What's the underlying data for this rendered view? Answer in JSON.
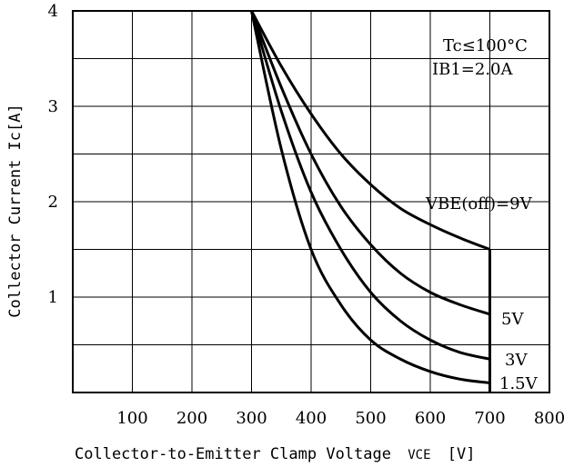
{
  "chart_data": {
    "type": "line",
    "xlabel": "Collector-to-Emitter Clamp Voltage",
    "xlabel_symbol": "VCE",
    "xlabel_unit": "[V]",
    "ylabel": "Collector Current Ic[A]",
    "xlim": [
      0,
      800
    ],
    "ylim": [
      0,
      4
    ],
    "x_ticks": [
      "100",
      "200",
      "300",
      "400",
      "500",
      "600",
      "700",
      "800"
    ],
    "y_ticks": [
      "1",
      "2",
      "3",
      "4"
    ],
    "x_grid": [
      100,
      200,
      300,
      400,
      500,
      600,
      700
    ],
    "y_grid": [
      0.5,
      1,
      1.5,
      2,
      2.5,
      3,
      3.5
    ],
    "grid": true,
    "annotations": {
      "condition1": "Tc≤100°C",
      "condition2": "IB1=2.0A"
    },
    "series": [
      {
        "name": "VBE(off)=9V",
        "x": [
          300,
          350,
          400,
          450,
          500,
          550,
          600,
          650,
          700
        ],
        "y": [
          4.0,
          3.42,
          2.92,
          2.5,
          2.18,
          1.93,
          1.76,
          1.62,
          1.5
        ]
      },
      {
        "name": "5V",
        "x": [
          300,
          350,
          400,
          450,
          500,
          550,
          600,
          650,
          700
        ],
        "y": [
          4.0,
          3.2,
          2.5,
          1.95,
          1.55,
          1.25,
          1.05,
          0.92,
          0.82
        ]
      },
      {
        "name": "3V",
        "x": [
          300,
          350,
          400,
          450,
          500,
          550,
          600,
          650,
          700
        ],
        "y": [
          4.0,
          2.95,
          2.1,
          1.5,
          1.05,
          0.75,
          0.55,
          0.42,
          0.35
        ]
      },
      {
        "name": "1.5V",
        "x": [
          300,
          350,
          400,
          450,
          500,
          550,
          600,
          650,
          700
        ],
        "y": [
          4.0,
          2.55,
          1.5,
          0.92,
          0.55,
          0.35,
          0.22,
          0.14,
          0.1
        ]
      }
    ],
    "clamp_line": {
      "x": 700,
      "y": [
        0,
        1.5
      ]
    }
  }
}
